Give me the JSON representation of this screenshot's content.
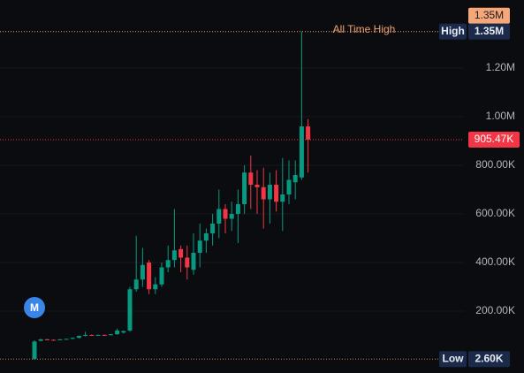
{
  "chart_data": {
    "type": "candlestick",
    "up_color": "#089981",
    "down_color": "#f23645",
    "ylim": [
      -54545,
      1480000
    ],
    "yticks": [
      {
        "value": 200000,
        "label": "200.00K"
      },
      {
        "value": 400000,
        "label": "400.00K"
      },
      {
        "value": 600000,
        "label": "600.00K"
      },
      {
        "value": 800000,
        "label": "800.00K"
      },
      {
        "value": 1000000,
        "label": "1.00M"
      },
      {
        "value": 1200000,
        "label": "1.20M"
      }
    ],
    "grid": true,
    "open": [
      3000,
      78000,
      84000,
      82000,
      81000,
      84000,
      86000,
      90000,
      98000,
      102000,
      100000,
      102000,
      101000,
      105000,
      112000,
      120000,
      290000,
      330000,
      400000,
      290000,
      310000,
      380000,
      410000,
      455000,
      420000,
      370000,
      440000,
      490000,
      520000,
      560000,
      620000,
      580000,
      600000,
      640000,
      770000,
      720000,
      710000,
      660000,
      720000,
      650000,
      680000,
      730000,
      750000,
      960000
    ],
    "high": [
      80000,
      86000,
      86000,
      84000,
      85000,
      87000,
      92000,
      100000,
      115000,
      104000,
      103000,
      104000,
      106000,
      128000,
      120000,
      300000,
      510000,
      460000,
      410000,
      340000,
      400000,
      470000,
      620000,
      470000,
      470000,
      520000,
      560000,
      540000,
      600000,
      700000,
      640000,
      650000,
      700000,
      800000,
      840000,
      780000,
      790000,
      770000,
      780000,
      830000,
      820000,
      820000,
      1350000,
      990000
    ],
    "low": [
      2600,
      76000,
      80000,
      79000,
      80000,
      83000,
      85000,
      88000,
      96000,
      98000,
      98000,
      99000,
      100000,
      103000,
      108000,
      115000,
      280000,
      300000,
      270000,
      270000,
      300000,
      360000,
      380000,
      360000,
      330000,
      350000,
      380000,
      440000,
      470000,
      500000,
      520000,
      530000,
      480000,
      600000,
      620000,
      600000,
      540000,
      560000,
      610000,
      530000,
      640000,
      660000,
      740000,
      770000
    ],
    "close": [
      75000,
      84000,
      82000,
      81000,
      84000,
      86000,
      90000,
      98000,
      102000,
      100000,
      102000,
      101000,
      105000,
      120000,
      118000,
      290000,
      330000,
      390000,
      290000,
      310000,
      380000,
      410000,
      450000,
      420000,
      380000,
      440000,
      490000,
      520000,
      560000,
      620000,
      580000,
      600000,
      640000,
      770000,
      720000,
      710000,
      660000,
      720000,
      650000,
      680000,
      740000,
      760000,
      960000,
      905470
    ],
    "all_time_high": {
      "label": "All Time High",
      "value": 1350000,
      "value_label": "1.35M"
    },
    "high_marker": {
      "label": "High",
      "value": 1350000,
      "value_label": "1.35M"
    },
    "low_marker": {
      "label": "Low",
      "value": 2600,
      "value_label": "2.60K"
    },
    "last_price": {
      "value": 905470,
      "label": "905.47K"
    },
    "event_marker": {
      "label": "M"
    }
  }
}
